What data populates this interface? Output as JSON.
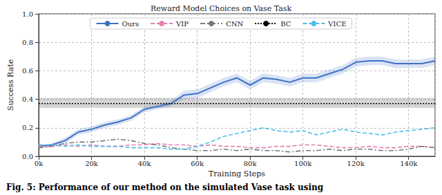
{
  "chart_data": {
    "type": "line",
    "title": "Reward Model Choices on Vase Task",
    "caption": "Fig. 5: Performance of our method on the simulated Vase task using",
    "x_label": "Training Steps",
    "y_label": "Success Rate",
    "x": [
      0,
      5000,
      10000,
      15000,
      20000,
      25000,
      30000,
      35000,
      40000,
      45000,
      50000,
      55000,
      60000,
      65000,
      70000,
      75000,
      80000,
      85000,
      90000,
      95000,
      100000,
      105000,
      110000,
      115000,
      120000,
      125000,
      130000,
      135000,
      140000,
      145000,
      150000
    ],
    "xlim": [
      0,
      150000
    ],
    "ylim": [
      0,
      1
    ],
    "xticks": [
      {
        "value": 0,
        "label": "0k"
      },
      {
        "value": 20000,
        "label": "20k"
      },
      {
        "value": 40000,
        "label": "40k"
      },
      {
        "value": 60000,
        "label": "60k"
      },
      {
        "value": 80000,
        "label": "80k"
      },
      {
        "value": 100000,
        "label": "100k"
      },
      {
        "value": 120000,
        "label": "120k"
      },
      {
        "value": 140000,
        "label": "140k"
      }
    ],
    "yticks": [
      {
        "value": 0,
        "label": "0.0"
      },
      {
        "value": 0.2,
        "label": "0.2"
      },
      {
        "value": 0.4,
        "label": "0.4"
      },
      {
        "value": 0.6,
        "label": "0.6"
      },
      {
        "value": 0.8,
        "label": "0.8"
      },
      {
        "value": 1,
        "label": "1.0"
      }
    ],
    "grid": true,
    "legend": "top",
    "series": [
      {
        "name": "Ours",
        "color": "#3f72c6",
        "line_style": "solid",
        "values": [
          0.07,
          0.08,
          0.11,
          0.17,
          0.19,
          0.22,
          0.24,
          0.27,
          0.33,
          0.35,
          0.37,
          0.43,
          0.44,
          0.48,
          0.52,
          0.55,
          0.5,
          0.55,
          0.54,
          0.52,
          0.55,
          0.55,
          0.58,
          0.61,
          0.66,
          0.67,
          0.67,
          0.65,
          0.65,
          0.65,
          0.67
        ],
        "lower": [
          0.06,
          0.07,
          0.09,
          0.15,
          0.17,
          0.2,
          0.22,
          0.25,
          0.31,
          0.33,
          0.35,
          0.4,
          0.41,
          0.45,
          0.49,
          0.52,
          0.47,
          0.52,
          0.51,
          0.49,
          0.52,
          0.52,
          0.55,
          0.58,
          0.63,
          0.64,
          0.64,
          0.62,
          0.62,
          0.62,
          0.64
        ],
        "upper": [
          0.08,
          0.09,
          0.13,
          0.19,
          0.21,
          0.24,
          0.26,
          0.29,
          0.35,
          0.37,
          0.39,
          0.46,
          0.47,
          0.51,
          0.55,
          0.58,
          0.53,
          0.58,
          0.57,
          0.55,
          0.58,
          0.58,
          0.61,
          0.64,
          0.69,
          0.7,
          0.7,
          0.68,
          0.68,
          0.68,
          0.7
        ]
      },
      {
        "name": "VIP",
        "color": "#e57fb5",
        "line_style": "dashed",
        "values": [
          0.07,
          0.07,
          0.08,
          0.07,
          0.08,
          0.07,
          0.07,
          0.08,
          0.08,
          0.09,
          0.08,
          0.08,
          0.07,
          0.08,
          0.07,
          0.07,
          0.06,
          0.06,
          0.07,
          0.07,
          0.08,
          0.08,
          0.07,
          0.06,
          0.06,
          0.07,
          0.06,
          0.06,
          0.07,
          0.07,
          0.06
        ]
      },
      {
        "name": "CNN",
        "color": "#777777",
        "line_style": "dashdot",
        "values": [
          0.06,
          0.07,
          0.09,
          0.1,
          0.1,
          0.11,
          0.12,
          0.11,
          0.09,
          0.08,
          0.06,
          0.05,
          0.04,
          0.04,
          0.05,
          0.04,
          0.05,
          0.04,
          0.04,
          0.03,
          0.04,
          0.04,
          0.05,
          0.04,
          0.05,
          0.05,
          0.04,
          0.04,
          0.05,
          0.07,
          0.06
        ]
      },
      {
        "name": "BC",
        "color": "#000000",
        "line_style": "dotted",
        "values": [
          0.37,
          0.37,
          0.37,
          0.37,
          0.37,
          0.37,
          0.37,
          0.37,
          0.37,
          0.37,
          0.37,
          0.37,
          0.37,
          0.37,
          0.37,
          0.37,
          0.37,
          0.37,
          0.37,
          0.37,
          0.37,
          0.37,
          0.37,
          0.37,
          0.37,
          0.37,
          0.37,
          0.37,
          0.37,
          0.37,
          0.37
        ],
        "lower": [
          0.34,
          0.34,
          0.34,
          0.34,
          0.34,
          0.34,
          0.34,
          0.34,
          0.34,
          0.34,
          0.34,
          0.34,
          0.34,
          0.34,
          0.34,
          0.34,
          0.34,
          0.34,
          0.34,
          0.34,
          0.34,
          0.34,
          0.34,
          0.34,
          0.34,
          0.34,
          0.34,
          0.34,
          0.34,
          0.34,
          0.34
        ],
        "upper": [
          0.41,
          0.41,
          0.41,
          0.41,
          0.41,
          0.41,
          0.41,
          0.41,
          0.41,
          0.41,
          0.41,
          0.41,
          0.41,
          0.41,
          0.41,
          0.41,
          0.41,
          0.41,
          0.41,
          0.41,
          0.41,
          0.41,
          0.41,
          0.41,
          0.41,
          0.41,
          0.41,
          0.41,
          0.41,
          0.41,
          0.41
        ]
      },
      {
        "name": "VICE",
        "color": "#4fbfe6",
        "line_style": "dashed",
        "values": [
          0.08,
          0.08,
          0.07,
          0.08,
          0.07,
          0.07,
          0.07,
          0.06,
          0.06,
          0.06,
          0.05,
          0.05,
          0.07,
          0.1,
          0.14,
          0.16,
          0.18,
          0.2,
          0.18,
          0.17,
          0.18,
          0.15,
          0.17,
          0.19,
          0.17,
          0.16,
          0.15,
          0.17,
          0.18,
          0.19,
          0.2
        ]
      }
    ]
  }
}
